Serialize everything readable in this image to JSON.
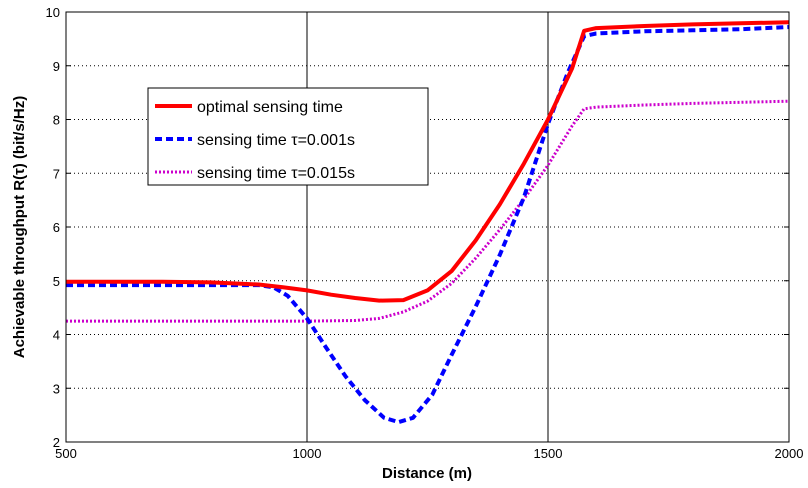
{
  "chart_data": {
    "type": "line",
    "xlabel": "Distance (m)",
    "ylabel": "Achievable throughput R(τ) (bit/s/Hz)",
    "xlim": [
      500,
      2000
    ],
    "ylim": [
      2,
      10
    ],
    "xticks": [
      500,
      1000,
      1500,
      2000
    ],
    "yticks": [
      2,
      3,
      4,
      5,
      6,
      7,
      8,
      9,
      10
    ],
    "grid": true,
    "legend_position": "upper-left",
    "series": [
      {
        "name": "optimal sensing time",
        "color": "#ff0000",
        "style": "solid",
        "x": [
          500,
          600,
          700,
          800,
          900,
          950,
          1000,
          1050,
          1100,
          1150,
          1200,
          1250,
          1300,
          1350,
          1400,
          1450,
          1500,
          1550,
          1575,
          1600,
          1700,
          1800,
          1900,
          2000
        ],
        "y": [
          4.98,
          4.98,
          4.98,
          4.97,
          4.93,
          4.88,
          4.82,
          4.74,
          4.68,
          4.63,
          4.64,
          4.82,
          5.18,
          5.75,
          6.42,
          7.18,
          8.0,
          8.95,
          9.65,
          9.7,
          9.74,
          9.77,
          9.79,
          9.81
        ]
      },
      {
        "name": "sensing time τ=0.001s",
        "color": "#0000ff",
        "style": "dashed",
        "x": [
          500,
          600,
          700,
          800,
          900,
          930,
          960,
          1000,
          1040,
          1080,
          1120,
          1160,
          1190,
          1220,
          1260,
          1300,
          1350,
          1400,
          1450,
          1500,
          1540,
          1575,
          1600,
          1700,
          1800,
          1900,
          2000
        ],
        "y": [
          4.92,
          4.92,
          4.92,
          4.92,
          4.92,
          4.88,
          4.72,
          4.3,
          3.75,
          3.22,
          2.78,
          2.45,
          2.37,
          2.45,
          2.88,
          3.62,
          4.52,
          5.48,
          6.55,
          7.92,
          8.85,
          9.55,
          9.6,
          9.64,
          9.66,
          9.68,
          9.72
        ]
      },
      {
        "name": "sensing time τ=0.015s",
        "color": "#cc00cc",
        "style": "dotted",
        "x": [
          500,
          600,
          700,
          800,
          900,
          1000,
          1100,
          1150,
          1200,
          1250,
          1300,
          1350,
          1400,
          1450,
          1500,
          1550,
          1575,
          1600,
          1700,
          1800,
          1900,
          2000
        ],
        "y": [
          4.25,
          4.25,
          4.25,
          4.25,
          4.25,
          4.25,
          4.26,
          4.3,
          4.42,
          4.62,
          4.95,
          5.42,
          5.95,
          6.52,
          7.15,
          7.88,
          8.2,
          8.23,
          8.27,
          8.3,
          8.32,
          8.34
        ]
      }
    ]
  }
}
